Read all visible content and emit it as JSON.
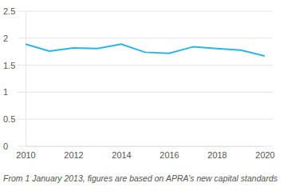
{
  "chart_data": {
    "type": "line",
    "x": [
      2010,
      2011,
      2012,
      2013,
      2014,
      2015,
      2016,
      2017,
      2018,
      2019,
      2020
    ],
    "values": [
      1.89,
      1.76,
      1.82,
      1.81,
      1.89,
      1.74,
      1.72,
      1.84,
      1.81,
      1.78,
      1.67
    ],
    "color": "#29b6e6",
    "xlim": [
      2010,
      2020
    ],
    "xticks": [
      2010,
      2012,
      2014,
      2016,
      2018,
      2020
    ],
    "ylim": [
      0,
      2.5
    ],
    "yticks": [
      0,
      0.5,
      1,
      1.5,
      2,
      2.5
    ],
    "grid": true,
    "annotations": [
      "From 1 January 2013, figures are based on APRA’s new capital standards"
    ]
  }
}
